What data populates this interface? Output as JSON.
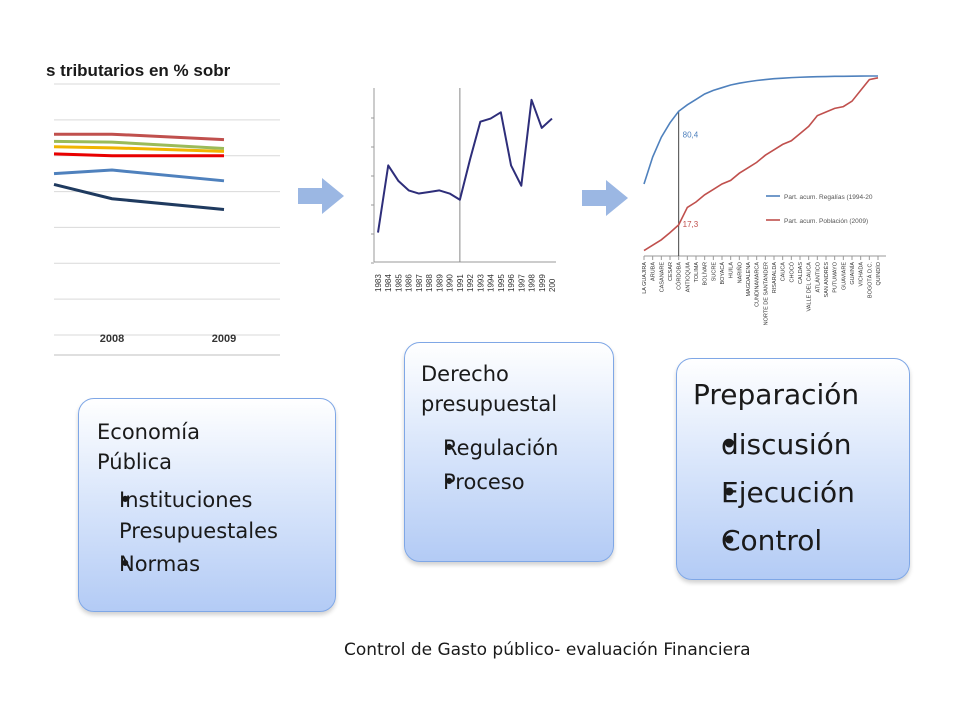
{
  "slide": {
    "footer": "Control de Gasto público- evaluación Financiera",
    "accent": "#9bb7e3"
  },
  "chart_data": [
    {
      "type": "line",
      "title": "s tributarios en % sobr",
      "categories": [
        "",
        "2008",
        "2009"
      ],
      "series": [
        {
          "color": "#c0504d",
          "values": [
            5.6,
            5.6,
            5.45
          ]
        },
        {
          "color": "#9bbb59",
          "values": [
            5.4,
            5.38,
            5.2
          ]
        },
        {
          "color": "#f0b400",
          "values": [
            5.25,
            5.22,
            5.12
          ]
        },
        {
          "color": "#e80000",
          "values": [
            5.05,
            5.0,
            5.0
          ]
        },
        {
          "color": "#4f81bd",
          "values": [
            4.5,
            4.6,
            4.3
          ]
        },
        {
          "color": "#1f3a5f",
          "values": [
            4.2,
            3.8,
            3.5
          ]
        }
      ]
    },
    {
      "type": "line",
      "color": "#2e2e7a",
      "marker_year": 1991,
      "x": [
        1983,
        1984,
        1985,
        1986,
        1987,
        1988,
        1989,
        1990,
        1991,
        1992,
        1993,
        1994,
        1995,
        1996,
        1997,
        1998,
        1999,
        2000
      ],
      "x_tick_labels": [
        "1983",
        "1984",
        "1985",
        "1986",
        "1987",
        "1988",
        "1989",
        "1990",
        "1991",
        "1992",
        "1993",
        "1994",
        "1995",
        "1996",
        "1997",
        "1998",
        "1999",
        "200"
      ],
      "values": [
        15,
        58,
        48,
        42,
        40,
        41,
        42,
        40,
        36,
        62,
        86,
        88,
        92,
        58,
        45,
        100,
        82,
        88
      ]
    },
    {
      "type": "line",
      "legend": [
        "Part. acum. Regalías (1994-20",
        "Part. acum. Población (2009)"
      ],
      "annotations": [
        "80,4",
        "17,3"
      ],
      "categories": [
        "LA GUAJIRA",
        "ARUBA",
        "CASANARE",
        "CESAR",
        "CÓRDOBA",
        "ANTIOQUIA",
        "TOLIMA",
        "BOLÍVAR",
        "SUCRE",
        "BOYACÁ",
        "HUILA",
        "NARIÑO",
        "MAGDALENA",
        "CUNDINAMARCA",
        "NORTE DE SANTANDER",
        "RISARALDA",
        "CAUCA",
        "CHOCÓ",
        "CALDAS",
        "VALLE DEL CAUCA",
        "ATLÁNTICO",
        "SAN ANDRÉS",
        "PUTUMAYO",
        "GUAVIARE",
        "GUAINÍA",
        "VICHADA",
        "BOGOTÁ D.C.",
        "QUINDÍO"
      ],
      "series": [
        {
          "color": "#4f81bd",
          "values": [
            40,
            55,
            66,
            74,
            80.4,
            84,
            87,
            90,
            92,
            93.5,
            95,
            96,
            96.8,
            97.5,
            98,
            98.5,
            98.8,
            99.1,
            99.3,
            99.5,
            99.6,
            99.7,
            99.8,
            99.85,
            99.9,
            99.95,
            100,
            100
          ]
        },
        {
          "color": "#c0504d",
          "values": [
            3,
            6,
            9,
            13,
            17.3,
            27,
            30,
            34,
            37,
            40,
            42,
            46,
            49,
            52,
            56,
            59,
            62,
            64,
            68,
            72,
            78,
            80,
            82,
            83,
            86,
            92,
            98,
            99
          ]
        }
      ]
    }
  ],
  "boxes": [
    {
      "heading": "Economía Pública",
      "items": [
        "Instituciones Presupuestales",
        "Normas"
      ]
    },
    {
      "heading": "Derecho presupuestal",
      "items": [
        "Regulación",
        "Proceso"
      ]
    },
    {
      "heading": "Preparación",
      "items": [
        "discusión",
        "Ejecución",
        "Control"
      ]
    }
  ]
}
